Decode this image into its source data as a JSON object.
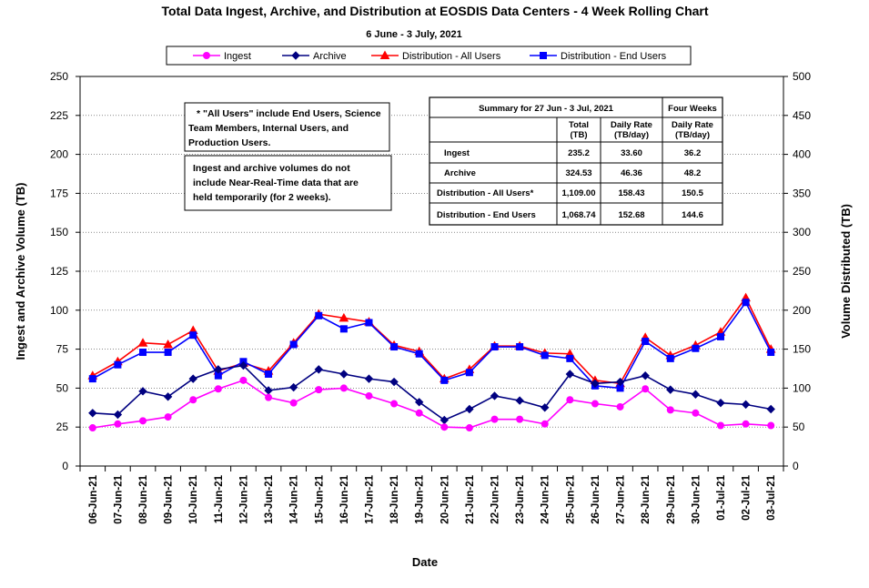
{
  "chart_data": {
    "type": "line",
    "title": "Total Data Ingest, Archive, and  Distribution at EOSDIS Data Centers - 4 Week Rolling Chart",
    "subtitle": "6  June  - 3  July,  2021",
    "xlabel": "Date",
    "ylabel": "Ingest and Archive Volume (TB)",
    "y2label": "Volume Distributed (TB)",
    "ylim": [
      0,
      250
    ],
    "y2lim": [
      0,
      500
    ],
    "yticks": [
      "0",
      "25",
      "50",
      "75",
      "100",
      "125",
      "150",
      "175",
      "200",
      "225",
      "250"
    ],
    "y2ticks": [
      "0",
      "50",
      "100",
      "150",
      "200",
      "250",
      "300",
      "350",
      "400",
      "450",
      "500"
    ],
    "grid": true,
    "legend_position": "top",
    "categories": [
      "06-Jun-21",
      "07-Jun-21",
      "08-Jun-21",
      "09-Jun-21",
      "10-Jun-21",
      "11-Jun-21",
      "12-Jun-21",
      "13-Jun-21",
      "14-Jun-21",
      "15-Jun-21",
      "16-Jun-21",
      "17-Jun-21",
      "18-Jun-21",
      "19-Jun-21",
      "20-Jun-21",
      "21-Jun-21",
      "22-Jun-21",
      "23-Jun-21",
      "24-Jun-21",
      "25-Jun-21",
      "26-Jun-21",
      "27-Jun-21",
      "28-Jun-21",
      "29-Jun-21",
      "30-Jun-21",
      "01-Jul-21",
      "02-Jul-21",
      "03-Jul-21"
    ],
    "series": [
      {
        "name": "Ingest",
        "axis": "left",
        "color": "#ff00ff",
        "marker": "circle",
        "values": [
          24.5,
          27,
          29,
          31.5,
          42.5,
          49.5,
          55,
          44,
          40.5,
          49,
          50,
          45,
          40,
          34,
          25,
          24.5,
          30,
          30,
          27,
          42.5,
          40,
          38,
          49.5,
          36,
          34,
          26,
          27,
          26
        ]
      },
      {
        "name": "Archive",
        "axis": "left",
        "color": "#000080",
        "marker": "diamond",
        "values": [
          34,
          33,
          48,
          44.5,
          56,
          62,
          64.5,
          48.5,
          50.5,
          62,
          59,
          56,
          54,
          41,
          29.5,
          36.5,
          45,
          42,
          37.5,
          59,
          53,
          54,
          58,
          49,
          46,
          40.5,
          39.5,
          36.5
        ]
      },
      {
        "name": "Distribution - All Users",
        "axis": "right",
        "color": "#ff0000",
        "marker": "triangle",
        "values": [
          116,
          134,
          158,
          156,
          174,
          122,
          132,
          122,
          158,
          195,
          190,
          185,
          155,
          147,
          112,
          124,
          154,
          154,
          145,
          144,
          110,
          106,
          165,
          142,
          155,
          172,
          216,
          150
        ]
      },
      {
        "name": "Distribution - End Users",
        "axis": "right",
        "color": "#0000ff",
        "marker": "square",
        "values": [
          112,
          130,
          146,
          146,
          168,
          116,
          134,
          118,
          156,
          193,
          176,
          184,
          153,
          144,
          110,
          120,
          153,
          153,
          142,
          138,
          103,
          100,
          160,
          138,
          151,
          166,
          210,
          146
        ]
      }
    ],
    "annotations": [
      {
        "name": "all-users-note",
        "lines": [
          "* \"All Users\" include End Users, Science",
          "Team Members,  Internal Users, and",
          "Production Users."
        ]
      },
      {
        "name": "nrt-note",
        "lines": [
          "Ingest and archive volumes do not",
          "include Near-Real-Time data that are",
          "held temporarily (for 2 weeks)."
        ]
      }
    ],
    "summary_table": {
      "header": "Summary  for  27  Jun  - 3  Jul,  2021",
      "four_weeks": "Four Weeks",
      "col_total": [
        "Total",
        "(TB)"
      ],
      "col_daily": [
        "Daily Rate",
        "(TB/day)"
      ],
      "col_four": [
        "Daily Rate",
        "(TB/day)"
      ],
      "rows": [
        {
          "label": "Ingest",
          "total": "235.2",
          "daily": "33.60",
          "four": "36.2"
        },
        {
          "label": "Archive",
          "total": "324.53",
          "daily": "46.36",
          "four": "48.2"
        },
        {
          "label": "Distribution - All Users*",
          "total": "1,109.00",
          "daily": "158.43",
          "four": "150.5"
        },
        {
          "label": "Distribution - End Users",
          "total": "1,068.74",
          "daily": "152.68",
          "four": "144.6"
        }
      ]
    }
  }
}
